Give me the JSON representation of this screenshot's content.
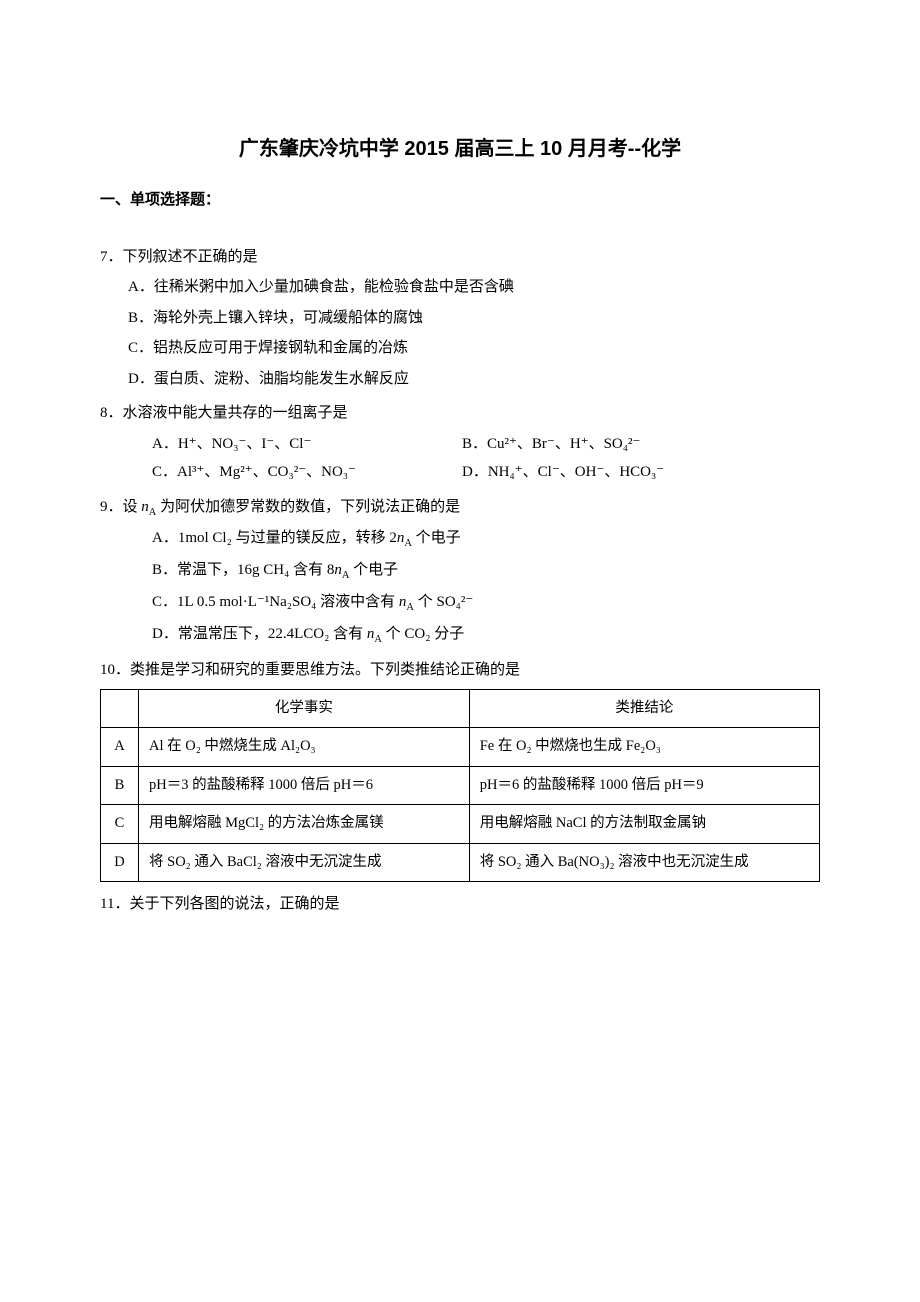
{
  "title": "广东肇庆冷坑中学 2015 届高三上 10 月月考--化学",
  "section_heading": "一、单项选择题：",
  "questions": {
    "q7": {
      "stem": "7．下列叙述不正确的是",
      "A": "A．往稀米粥中加入少量加碘食盐，能检验食盐中是否含碘",
      "B": "B．海轮外壳上镶入锌块，可减缓船体的腐蚀",
      "C": "C．铝热反应可用于焊接钢轨和金属的冶炼",
      "D": "D．蛋白质、淀粉、油脂均能发生水解反应"
    },
    "q8": {
      "stem": "8．水溶液中能大量共存的一组离子是",
      "A": "A．H⁺、NO₃⁻、I⁻、Cl⁻",
      "B": "B．Cu²⁺、Br⁻、H⁺、SO₄²⁻",
      "C": "C．Al³⁺、Mg²⁺、CO₃²⁻、NO₃⁻",
      "D": "D．NH₄⁺、Cl⁻、OH⁻、HCO₃⁻"
    },
    "q9": {
      "stem_pre": "9．设 ",
      "stem_var": "n",
      "stem_sub": "A",
      "stem_post": " 为阿伏加德罗常数的数值，下列说法正确的是",
      "A_pre": "A．1mol Cl₂ 与过量的镁反应，转移 2",
      "A_var": "n",
      "A_sub": "A",
      "A_post": " 个电子",
      "B_pre": "B．常温下，16g CH₄ 含有 8",
      "B_var": "n",
      "B_sub": "A",
      "B_post": " 个电子",
      "C_pre": "C．1L 0.5 mol·L⁻¹Na₂SO₄ 溶液中含有 ",
      "C_var": "n",
      "C_sub": "A",
      "C_post": " 个 SO₄²⁻",
      "D_pre": "D．常温常压下，22.4LCO₂ 含有 ",
      "D_var": "n",
      "D_sub": "A",
      "D_post": " 个 CO₂ 分子"
    },
    "q10": {
      "stem": "10．类推是学习和研究的重要思维方法。下列类推结论正确的是",
      "table": {
        "header_fact": "化学事实",
        "header_conclusion": "类推结论",
        "rows": [
          {
            "letter": "A",
            "fact": "Al 在 O₂ 中燃烧生成 Al₂O₃",
            "conclusion": "Fe 在 O₂ 中燃烧也生成 Fe₂O₃"
          },
          {
            "letter": "B",
            "fact": "pH＝3 的盐酸稀释 1000 倍后 pH＝6",
            "conclusion": "pH＝6 的盐酸稀释 1000 倍后 pH＝9"
          },
          {
            "letter": "C",
            "fact": "用电解熔融 MgCl₂ 的方法冶炼金属镁",
            "conclusion": "用电解熔融 NaCl 的方法制取金属钠"
          },
          {
            "letter": "D",
            "fact": "将 SO₂ 通入 BaCl₂ 溶液中无沉淀生成",
            "conclusion": "将 SO₂ 通入 Ba(NO₃)₂ 溶液中也无沉淀生成"
          }
        ]
      }
    },
    "q11": {
      "stem": "11．关于下列各图的说法，正确的是"
    }
  }
}
